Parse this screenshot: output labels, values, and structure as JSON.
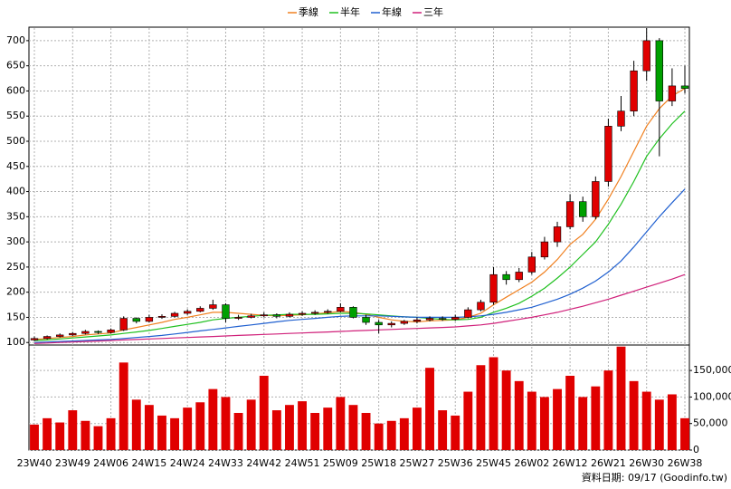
{
  "chart_data": {
    "type": "candlestick",
    "categories": [
      "23W40",
      null,
      null,
      "23W49",
      null,
      null,
      "24W06",
      null,
      null,
      "24W15",
      null,
      null,
      "24W24",
      null,
      null,
      "24W33",
      null,
      null,
      "24W42",
      null,
      null,
      "24W51",
      null,
      null,
      "25W09",
      null,
      null,
      "25W18",
      null,
      null,
      "25W27",
      null,
      null,
      "25W36",
      null,
      null,
      "25W45",
      null,
      null,
      "26W02",
      null,
      null,
      "26W12",
      null,
      null,
      "26W21",
      null,
      null,
      "26W30",
      null,
      null,
      "26W38"
    ],
    "open": [
      105,
      108,
      112,
      115,
      118,
      122,
      120,
      125,
      148,
      142,
      150,
      152,
      158,
      162,
      168,
      175,
      148,
      150,
      153,
      155,
      152,
      156,
      158,
      160,
      162,
      170,
      150,
      140,
      135,
      138,
      142,
      145,
      148,
      146,
      150,
      165,
      180,
      235,
      225,
      240,
      270,
      300,
      330,
      380,
      350,
      420,
      530,
      560,
      640,
      700,
      580,
      610
    ],
    "high": [
      112,
      114,
      118,
      121,
      125,
      124,
      128,
      152,
      150,
      155,
      156,
      161,
      166,
      172,
      185,
      178,
      155,
      157,
      160,
      158,
      160,
      162,
      164,
      166,
      178,
      172,
      155,
      145,
      142,
      145,
      150,
      152,
      152,
      155,
      170,
      185,
      250,
      242,
      248,
      280,
      310,
      340,
      395,
      390,
      430,
      545,
      590,
      660,
      725,
      705,
      645,
      650
    ],
    "low": [
      103,
      106,
      110,
      113,
      116,
      117,
      118,
      123,
      138,
      140,
      147,
      150,
      155,
      160,
      165,
      140,
      145,
      148,
      150,
      148,
      150,
      153,
      155,
      157,
      160,
      148,
      135,
      118,
      130,
      135,
      138,
      142,
      143,
      143,
      148,
      162,
      175,
      215,
      220,
      235,
      265,
      290,
      325,
      340,
      345,
      410,
      520,
      550,
      620,
      470,
      570,
      595
    ],
    "close": [
      108,
      112,
      115,
      118,
      122,
      120,
      125,
      148,
      142,
      150,
      152,
      158,
      162,
      168,
      175,
      148,
      150,
      153,
      155,
      152,
      156,
      158,
      160,
      162,
      170,
      150,
      140,
      135,
      138,
      142,
      145,
      148,
      146,
      150,
      165,
      180,
      235,
      225,
      240,
      270,
      300,
      330,
      380,
      350,
      420,
      530,
      560,
      640,
      700,
      580,
      610,
      605
    ],
    "up_color": "#e00000",
    "down_color": "#00a000",
    "series": [
      {
        "name": "季線",
        "color": "#f08020",
        "values": [
          106,
          108,
          110,
          112,
          115,
          117,
          119,
          125,
          130,
          135,
          140,
          146,
          150,
          155,
          160,
          160,
          158,
          156,
          154,
          153,
          154,
          155,
          157,
          159,
          162,
          160,
          156,
          150,
          145,
          142,
          141,
          143,
          144,
          145,
          150,
          158,
          175,
          190,
          205,
          220,
          240,
          265,
          295,
          315,
          345,
          385,
          430,
          480,
          530,
          565,
          590,
          605
        ]
      },
      {
        "name": "半年",
        "color": "#20c020",
        "values": [
          104,
          105,
          107,
          109,
          111,
          113,
          115,
          118,
          121,
          124,
          128,
          132,
          136,
          140,
          145,
          148,
          150,
          152,
          154,
          155,
          156,
          156,
          156,
          157,
          158,
          158,
          157,
          155,
          153,
          151,
          150,
          148,
          146,
          145,
          146,
          150,
          160,
          168,
          178,
          192,
          208,
          228,
          250,
          275,
          300,
          335,
          375,
          420,
          470,
          505,
          535,
          560
        ]
      },
      {
        "name": "年線",
        "color": "#2060d0",
        "values": [
          100,
          101,
          102,
          103,
          104,
          105,
          106,
          108,
          110,
          112,
          114,
          117,
          120,
          123,
          126,
          129,
          132,
          135,
          138,
          141,
          144,
          146,
          148,
          150,
          152,
          153,
          153,
          153,
          152,
          151,
          150,
          150,
          150,
          150,
          151,
          153,
          156,
          160,
          165,
          170,
          178,
          186,
          196,
          208,
          222,
          240,
          262,
          290,
          320,
          350,
          378,
          405
        ]
      },
      {
        "name": "三年",
        "color": "#d0207a",
        "values": [
          98,
          99,
          100,
          101,
          102,
          103,
          104,
          105,
          106,
          107,
          108,
          109,
          110,
          111,
          112,
          113,
          114,
          115,
          116,
          117,
          118,
          119,
          120,
          121,
          122,
          123,
          124,
          125,
          126,
          127,
          128,
          129,
          130,
          131,
          133,
          135,
          138,
          142,
          146,
          150,
          155,
          160,
          166,
          172,
          179,
          186,
          194,
          202,
          210,
          218,
          226,
          235
        ]
      }
    ],
    "ylim": [
      95,
      725
    ],
    "yticks": [
      100,
      150,
      200,
      250,
      300,
      350,
      400,
      450,
      500,
      550,
      600,
      650,
      700
    ],
    "volume": [
      48000,
      60000,
      52000,
      75000,
      55000,
      45000,
      60000,
      165000,
      95000,
      85000,
      65000,
      60000,
      80000,
      90000,
      115000,
      100000,
      70000,
      95000,
      140000,
      75000,
      85000,
      92000,
      70000,
      80000,
      100000,
      85000,
      70000,
      50000,
      55000,
      60000,
      80000,
      155000,
      75000,
      65000,
      110000,
      160000,
      175000,
      150000,
      130000,
      110000,
      100000,
      115000,
      140000,
      100000,
      120000,
      150000,
      195000,
      130000,
      110000,
      95000,
      105000,
      60000
    ],
    "volume_color": "#e00000",
    "volume_ylim": [
      0,
      198000
    ],
    "volume_yticks": [
      0,
      {
        "value": 50000,
        "label": "50,000"
      },
      {
        "value": 100000,
        "label": "100,000"
      },
      {
        "value": 150000,
        "label": "150,000"
      }
    ],
    "grid": true,
    "footnote": "資料日期: 09/17  (Goodinfo.tw)"
  }
}
